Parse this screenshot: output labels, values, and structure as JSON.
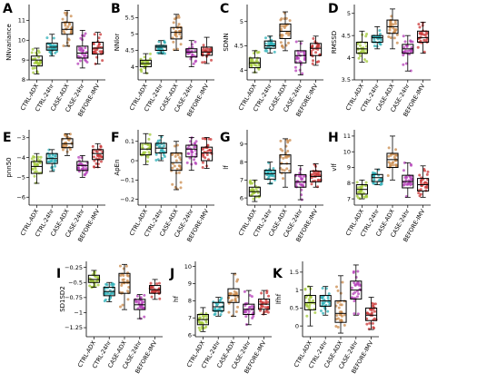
{
  "palette": {
    "CTRL-ADX": "#a3c93a",
    "CTRL-24hr": "#2fb0b8",
    "CASE-ADX": "#c98a4b",
    "CASE-24hr": "#b43fb8",
    "BEFORE-IMV": "#c93636"
  },
  "chart_data": [
    {
      "type": "box",
      "letter": "A",
      "ylabel": "NNvariance",
      "categories": [
        "CTRL-ADX",
        "CTRL-24hr",
        "CASE-ADX",
        "CASE-24hr",
        "BEFORE-IMV"
      ],
      "ylim": [
        8,
        11.8
      ],
      "yticks": [
        8,
        9,
        10,
        11
      ],
      "boxes": [
        {
          "q1": 8.7,
          "med": 9.0,
          "q3": 9.2,
          "lo": 8.3,
          "hi": 9.6
        },
        {
          "q1": 9.5,
          "med": 9.65,
          "q3": 9.85,
          "lo": 9.2,
          "hi": 10.3
        },
        {
          "q1": 10.3,
          "med": 10.55,
          "q3": 10.9,
          "lo": 9.7,
          "hi": 11.5
        },
        {
          "q1": 9.1,
          "med": 9.35,
          "q3": 9.7,
          "lo": 8.6,
          "hi": 10.5
        },
        {
          "q1": 9.3,
          "med": 9.6,
          "q3": 9.9,
          "lo": 8.8,
          "hi": 10.4
        }
      ]
    },
    {
      "type": "box",
      "letter": "B",
      "ylabel": "NNlor",
      "categories": [
        "CTRL-ADX",
        "CTRL-24hr",
        "CASE-ADX",
        "CASE-24hr",
        "BEFORE-IMV"
      ],
      "ylim": [
        3.6,
        5.9
      ],
      "yticks": [
        4.0,
        4.5,
        5.0,
        5.5
      ],
      "boxes": [
        {
          "q1": 4.0,
          "med": 4.1,
          "q3": 4.2,
          "lo": 3.8,
          "hi": 4.4
        },
        {
          "q1": 4.5,
          "med": 4.6,
          "q3": 4.65,
          "lo": 4.4,
          "hi": 4.8
        },
        {
          "q1": 4.85,
          "med": 5.05,
          "q3": 5.2,
          "lo": 4.5,
          "hi": 5.6
        },
        {
          "q1": 4.3,
          "med": 4.45,
          "q3": 4.55,
          "lo": 4.0,
          "hi": 4.8
        },
        {
          "q1": 4.35,
          "med": 4.45,
          "q3": 4.6,
          "lo": 4.1,
          "hi": 4.9
        }
      ]
    },
    {
      "type": "box",
      "letter": "C",
      "ylabel": "SDNN",
      "categories": [
        "CTRL-ADX",
        "CTRL-24hr",
        "CASE-ADX",
        "CASE-24hr",
        "BEFORE-IMV"
      ],
      "ylim": [
        3.8,
        5.35
      ],
      "yticks": [
        4.0,
        4.5,
        5.0
      ],
      "boxes": [
        {
          "q1": 4.05,
          "med": 4.15,
          "q3": 4.25,
          "lo": 3.95,
          "hi": 4.4
        },
        {
          "q1": 4.45,
          "med": 4.5,
          "q3": 4.6,
          "lo": 4.35,
          "hi": 4.7
        },
        {
          "q1": 4.65,
          "med": 4.8,
          "q3": 4.95,
          "lo": 4.4,
          "hi": 5.2
        },
        {
          "q1": 4.15,
          "med": 4.3,
          "q3": 4.4,
          "lo": 3.9,
          "hi": 4.6
        },
        {
          "q1": 4.3,
          "med": 4.45,
          "q3": 4.55,
          "lo": 4.1,
          "hi": 4.7
        }
      ]
    },
    {
      "type": "box",
      "letter": "D",
      "ylabel": "RMSSD",
      "categories": [
        "CTRL-ADX",
        "CTRL-24hr",
        "CASE-ADX",
        "CASE-24hr",
        "BEFORE-IMV"
      ],
      "ylim": [
        3.5,
        5.2
      ],
      "yticks": [
        3.5,
        4.0,
        4.5,
        5.0
      ],
      "boxes": [
        {
          "q1": 4.1,
          "med": 4.2,
          "q3": 4.35,
          "lo": 3.9,
          "hi": 4.6
        },
        {
          "q1": 4.35,
          "med": 4.45,
          "q3": 4.5,
          "lo": 4.2,
          "hi": 4.7
        },
        {
          "q1": 4.55,
          "med": 4.7,
          "q3": 4.85,
          "lo": 4.2,
          "hi": 5.1
        },
        {
          "q1": 4.1,
          "med": 4.2,
          "q3": 4.3,
          "lo": 3.7,
          "hi": 4.5
        },
        {
          "q1": 4.35,
          "med": 4.45,
          "q3": 4.6,
          "lo": 4.1,
          "hi": 4.8
        }
      ]
    },
    {
      "type": "box",
      "letter": "E",
      "ylabel": "pnn50",
      "categories": [
        "CTRL-ADX",
        "CTRL-24hr",
        "CASE-ADX",
        "CASE-24hr",
        "BEFORE-IMV"
      ],
      "ylim": [
        -6.4,
        -2.6
      ],
      "yticks": [
        -6,
        -5,
        -4,
        -3
      ],
      "boxes": [
        {
          "q1": -4.8,
          "med": -4.45,
          "q3": -4.2,
          "lo": -5.3,
          "hi": -3.8
        },
        {
          "q1": -4.3,
          "med": -4.05,
          "q3": -3.8,
          "lo": -4.7,
          "hi": -3.6
        },
        {
          "q1": -3.5,
          "med": -3.3,
          "q3": -3.05,
          "lo": -3.9,
          "hi": -2.8
        },
        {
          "q1": -4.65,
          "med": -4.4,
          "q3": -4.2,
          "lo": -5.0,
          "hi": -3.9
        },
        {
          "q1": -4.1,
          "med": -3.8,
          "q3": -3.6,
          "lo": -4.5,
          "hi": -3.3
        }
      ]
    },
    {
      "type": "box",
      "letter": "F",
      "ylabel": "ApEn",
      "categories": [
        "CTRL-ADX",
        "CTRL-24hr",
        "CASE-ADX",
        "CASE-24hr",
        "BEFORE-IMV"
      ],
      "ylim": [
        -0.23,
        0.16
      ],
      "yticks": [
        -0.2,
        -0.1,
        0.0,
        0.1
      ],
      "boxes": [
        {
          "q1": 0.03,
          "med": 0.06,
          "q3": 0.09,
          "lo": -0.02,
          "hi": 0.14
        },
        {
          "q1": 0.04,
          "med": 0.065,
          "q3": 0.09,
          "lo": 0.0,
          "hi": 0.13
        },
        {
          "q1": -0.05,
          "med": -0.01,
          "q3": 0.04,
          "lo": -0.15,
          "hi": 0.1
        },
        {
          "q1": 0.02,
          "med": 0.06,
          "q3": 0.08,
          "lo": -0.05,
          "hi": 0.12
        },
        {
          "q1": 0.0,
          "med": 0.04,
          "q3": 0.07,
          "lo": -0.04,
          "hi": 0.12
        }
      ]
    },
    {
      "type": "box",
      "letter": "G",
      "ylabel": "lf",
      "categories": [
        "CTRL-ADX",
        "CTRL-24hr",
        "CASE-ADX",
        "CASE-24hr",
        "BEFORE-IMV"
      ],
      "ylim": [
        5.6,
        9.8
      ],
      "yticks": [
        6,
        7,
        8,
        9
      ],
      "boxes": [
        {
          "q1": 6.1,
          "med": 6.35,
          "q3": 6.6,
          "lo": 5.8,
          "hi": 7.0
        },
        {
          "q1": 7.05,
          "med": 7.35,
          "q3": 7.55,
          "lo": 6.8,
          "hi": 8.0
        },
        {
          "q1": 7.4,
          "med": 7.9,
          "q3": 8.4,
          "lo": 6.6,
          "hi": 9.3
        },
        {
          "q1": 6.6,
          "med": 6.9,
          "q3": 7.3,
          "lo": 5.9,
          "hi": 7.8
        },
        {
          "q1": 6.9,
          "med": 7.2,
          "q3": 7.5,
          "lo": 6.6,
          "hi": 7.9
        }
      ]
    },
    {
      "type": "box",
      "letter": "H",
      "ylabel": "vlf",
      "categories": [
        "CTRL-ADX",
        "CTRL-24hr",
        "CASE-ADX",
        "CASE-24hr",
        "BEFORE-IMV"
      ],
      "ylim": [
        6.6,
        11.4
      ],
      "yticks": [
        7,
        8,
        9,
        10,
        11
      ],
      "boxes": [
        {
          "q1": 7.3,
          "med": 7.6,
          "q3": 7.9,
          "lo": 7.0,
          "hi": 8.2
        },
        {
          "q1": 8.1,
          "med": 8.35,
          "q3": 8.55,
          "lo": 7.9,
          "hi": 8.9
        },
        {
          "q1": 9.0,
          "med": 9.5,
          "q3": 9.9,
          "lo": 8.2,
          "hi": 11.0
        },
        {
          "q1": 7.7,
          "med": 8.1,
          "q3": 8.5,
          "lo": 7.1,
          "hi": 9.3
        },
        {
          "q1": 7.5,
          "med": 7.9,
          "q3": 8.3,
          "lo": 7.1,
          "hi": 9.1
        }
      ]
    },
    {
      "type": "box",
      "letter": "I",
      "ylabel": "SD1SD2",
      "categories": [
        "CTRL-ADX",
        "CTRL-24hr",
        "CASE-ADX",
        "CASE-24hr",
        "BEFORE-IMV"
      ],
      "ylim": [
        -1.4,
        -0.15
      ],
      "yticks": [
        -1.25,
        -1.0,
        -0.75,
        -0.5,
        -0.25
      ],
      "boxes": [
        {
          "q1": -0.5,
          "med": -0.45,
          "q3": -0.38,
          "lo": -0.58,
          "hi": -0.3
        },
        {
          "q1": -0.72,
          "med": -0.65,
          "q3": -0.58,
          "lo": -0.82,
          "hi": -0.5
        },
        {
          "q1": -0.68,
          "med": -0.5,
          "q3": -0.35,
          "lo": -0.95,
          "hi": -0.2
        },
        {
          "q1": -0.95,
          "med": -0.87,
          "q3": -0.78,
          "lo": -1.1,
          "hi": -0.7
        },
        {
          "q1": -0.68,
          "med": -0.62,
          "q3": -0.55,
          "lo": -0.78,
          "hi": -0.45
        }
      ]
    },
    {
      "type": "box",
      "letter": "J",
      "ylabel": "hf",
      "categories": [
        "CTRL-ADX",
        "CTRL-24hr",
        "CASE-ADX",
        "CASE-24hr",
        "BEFORE-IMV"
      ],
      "ylim": [
        5.9,
        10.3
      ],
      "yticks": [
        6,
        7,
        8,
        9,
        10
      ],
      "boxes": [
        {
          "q1": 6.6,
          "med": 6.9,
          "q3": 7.2,
          "lo": 6.2,
          "hi": 7.6
        },
        {
          "q1": 7.4,
          "med": 7.65,
          "q3": 7.9,
          "lo": 7.1,
          "hi": 8.2
        },
        {
          "q1": 7.9,
          "med": 8.3,
          "q3": 8.7,
          "lo": 7.1,
          "hi": 9.6
        },
        {
          "q1": 7.2,
          "med": 7.5,
          "q3": 7.8,
          "lo": 6.6,
          "hi": 8.6
        },
        {
          "q1": 7.5,
          "med": 7.8,
          "q3": 8.1,
          "lo": 7.2,
          "hi": 8.6
        }
      ]
    },
    {
      "type": "box",
      "letter": "K",
      "ylabel": "lfhf",
      "categories": [
        "CTRL-ADX",
        "CTRL-24hr",
        "CASE-ADX",
        "CASE-24hr",
        "BEFORE-IMV"
      ],
      "ylim": [
        -0.3,
        1.8
      ],
      "yticks": [
        0.0,
        0.5,
        1.0,
        1.5
      ],
      "boxes": [
        {
          "q1": 0.45,
          "med": 0.65,
          "q3": 0.85,
          "lo": 0.0,
          "hi": 1.1
        },
        {
          "q1": 0.55,
          "med": 0.7,
          "q3": 0.85,
          "lo": 0.3,
          "hi": 1.1
        },
        {
          "q1": 0.1,
          "med": 0.35,
          "q3": 0.7,
          "lo": -0.2,
          "hi": 1.4
        },
        {
          "q1": 0.75,
          "med": 1.0,
          "q3": 1.25,
          "lo": 0.3,
          "hi": 1.7
        },
        {
          "q1": 0.15,
          "med": 0.3,
          "q3": 0.5,
          "lo": -0.1,
          "hi": 0.8
        }
      ]
    }
  ]
}
